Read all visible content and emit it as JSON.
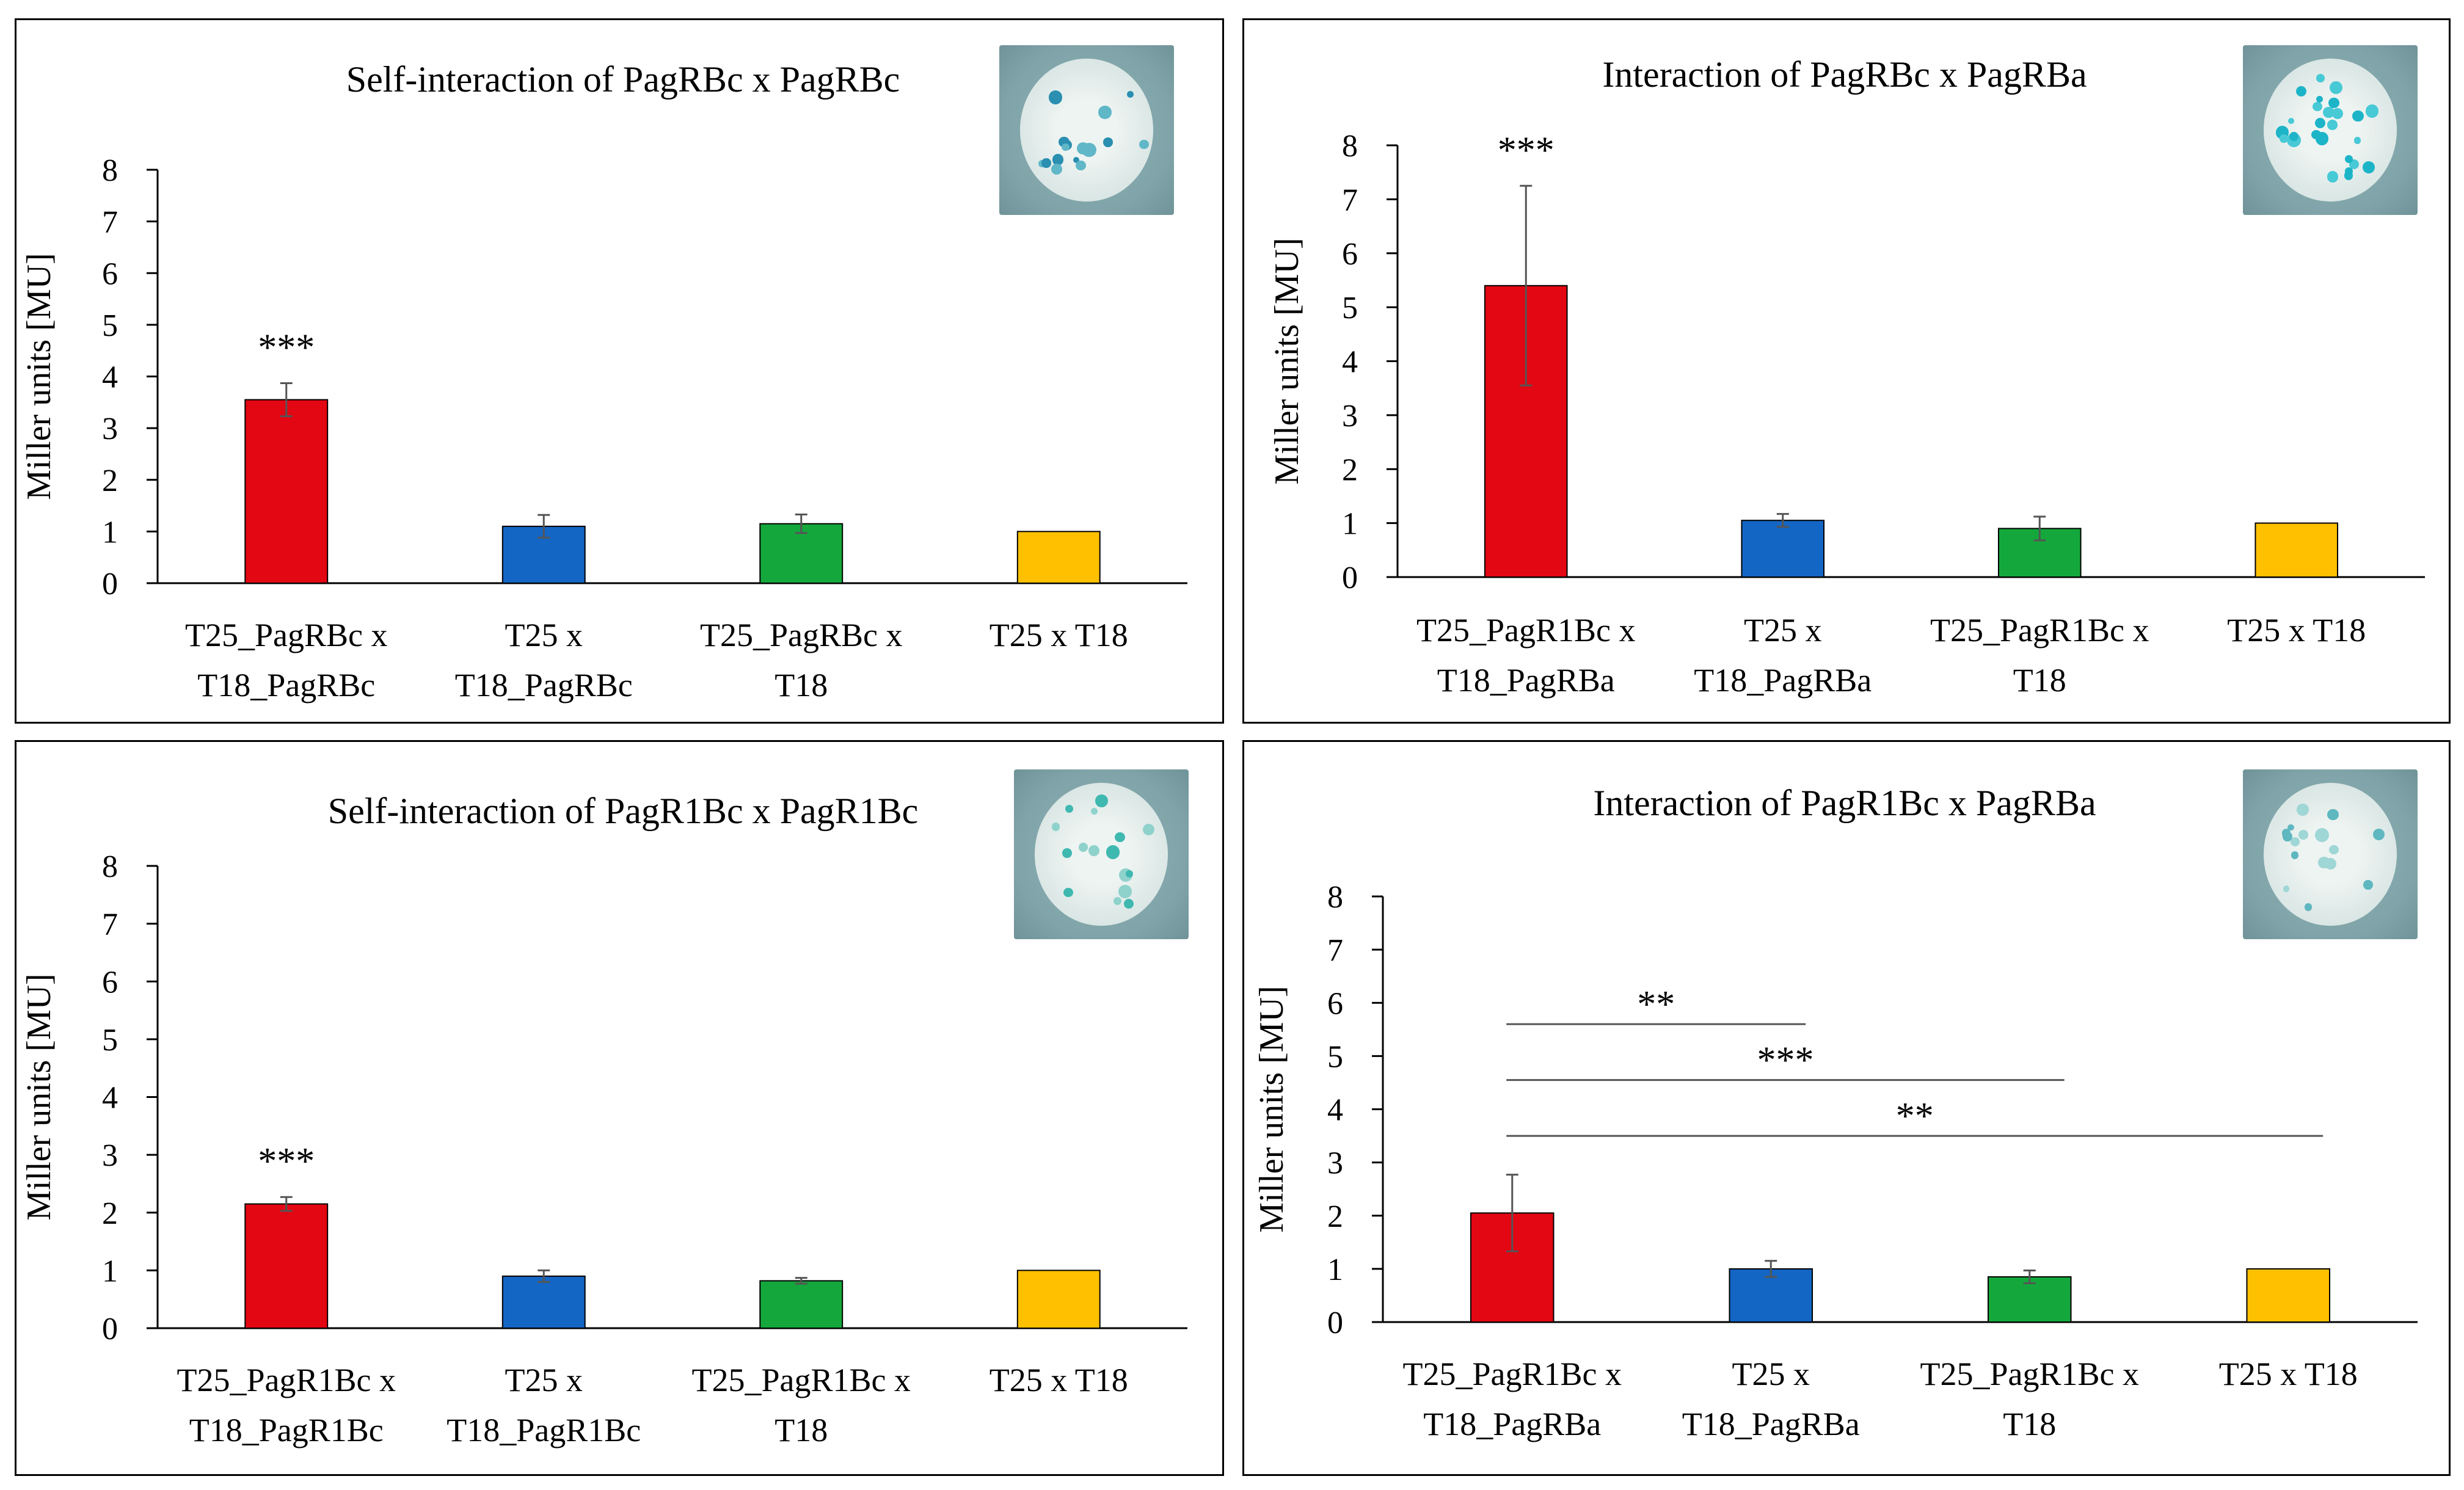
{
  "colors": {
    "red": "#e30613",
    "blue": "#1466c4",
    "green": "#14a83c",
    "yellow": "#ffc000",
    "axis": "#000000",
    "error": "#555555"
  },
  "chart_data": [
    {
      "type": "bar",
      "title": "Self-interaction of PagRBc x PagRBc",
      "ylabel": "Miller units [MU]",
      "ylim": [
        0,
        8
      ],
      "yticks": [
        "0",
        "1",
        "2",
        "3",
        "4",
        "5",
        "6",
        "7",
        "8"
      ],
      "categories": [
        [
          "T25_PagRBc x",
          "T18_PagRBc"
        ],
        [
          "T25 x",
          "T18_PagRBc"
        ],
        [
          "T25_PagRBc x",
          "T18"
        ],
        [
          "T25 x T18"
        ]
      ],
      "values": [
        3.55,
        1.1,
        1.15,
        1.0
      ],
      "errors": [
        0.32,
        0.22,
        0.18,
        0.0
      ],
      "bar_colors": [
        "red",
        "blue",
        "green",
        "yellow"
      ],
      "annotations": [
        {
          "text": "***",
          "bar": 0
        }
      ],
      "brackets": []
    },
    {
      "type": "bar",
      "title": "Interaction of PagRBc x PagRBa",
      "ylabel": "Miller units [MU]",
      "ylim": [
        0,
        8
      ],
      "yticks": [
        "0",
        "1",
        "2",
        "3",
        "4",
        "5",
        "6",
        "7",
        "8"
      ],
      "categories": [
        [
          "T25_PagR1Bc x",
          "T18_PagRBa"
        ],
        [
          "T25 x",
          "T18_PagRBa"
        ],
        [
          "T25_PagR1Bc x",
          "T18"
        ],
        [
          "T25 x T18"
        ]
      ],
      "values": [
        5.4,
        1.05,
        0.9,
        1.0
      ],
      "errors": [
        1.85,
        0.12,
        0.22,
        0.0
      ],
      "bar_colors": [
        "red",
        "blue",
        "green",
        "yellow"
      ],
      "annotations": [
        {
          "text": "***",
          "bar": 0
        }
      ],
      "brackets": []
    },
    {
      "type": "bar",
      "title": "Self-interaction of PagR1Bc x PagR1Bc",
      "ylabel": "Miller units [MU]",
      "ylim": [
        0,
        8
      ],
      "yticks": [
        "0",
        "1",
        "2",
        "3",
        "4",
        "5",
        "6",
        "7",
        "8"
      ],
      "categories": [
        [
          "T25_PagR1Bc x",
          "T18_PagR1Bc"
        ],
        [
          "T25 x",
          "T18_PagR1Bc"
        ],
        [
          "T25_PagR1Bc x",
          "T18"
        ],
        [
          "T25 x T18"
        ]
      ],
      "values": [
        2.15,
        0.9,
        0.82,
        1.0
      ],
      "errors": [
        0.12,
        0.1,
        0.05,
        0.0
      ],
      "bar_colors": [
        "red",
        "blue",
        "green",
        "yellow"
      ],
      "annotations": [
        {
          "text": "***",
          "bar": 0
        }
      ],
      "brackets": []
    },
    {
      "type": "bar",
      "title": "Interaction of PagR1Bc x PagRBa",
      "ylabel": "Miller units [MU]",
      "ylim": [
        0,
        8
      ],
      "yticks": [
        "0",
        "1",
        "2",
        "3",
        "4",
        "5",
        "6",
        "7",
        "8"
      ],
      "categories": [
        [
          "T25_PagR1Bc x",
          "T18_PagRBa"
        ],
        [
          "T25 x",
          "T18_PagRBa"
        ],
        [
          "T25_PagR1Bc x",
          "T18"
        ],
        [
          "T25 x T18"
        ]
      ],
      "values": [
        2.05,
        1.0,
        0.85,
        1.0
      ],
      "errors": [
        0.72,
        0.15,
        0.12,
        0.0
      ],
      "bar_colors": [
        "red",
        "blue",
        "green",
        "yellow"
      ],
      "annotations": [],
      "brackets": [
        {
          "text": "**",
          "from": 0,
          "to": 1,
          "level": 5.6
        },
        {
          "text": "***",
          "from": 0,
          "to": 2,
          "level": 4.55
        },
        {
          "text": "**",
          "from": 0,
          "to": 3,
          "level": 3.5
        }
      ]
    }
  ]
}
